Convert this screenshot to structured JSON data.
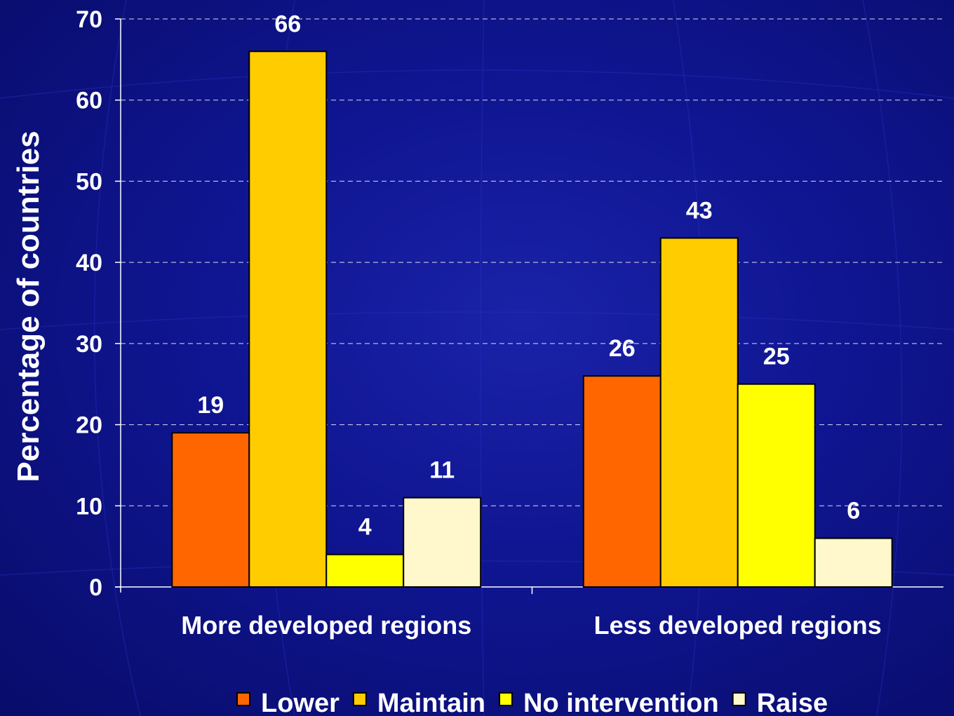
{
  "chart_data": {
    "type": "bar",
    "title": "",
    "xlabel": "",
    "ylabel": "Percentage of countries",
    "ylim": [
      0,
      70
    ],
    "yticks": [
      0,
      10,
      20,
      30,
      40,
      50,
      60,
      70
    ],
    "grid": true,
    "legend_position": "bottom",
    "categories": [
      "More developed regions",
      "Less developed regions"
    ],
    "series": [
      {
        "name": "Lower",
        "color": "#ff6600",
        "values": [
          19,
          26
        ]
      },
      {
        "name": "Maintain",
        "color": "#ffcc00",
        "values": [
          66,
          43
        ]
      },
      {
        "name": "No intervention",
        "color": "#ffff00",
        "values": [
          4,
          25
        ]
      },
      {
        "name": "Raise",
        "color": "#fff8cc",
        "values": [
          11,
          6
        ]
      }
    ]
  }
}
